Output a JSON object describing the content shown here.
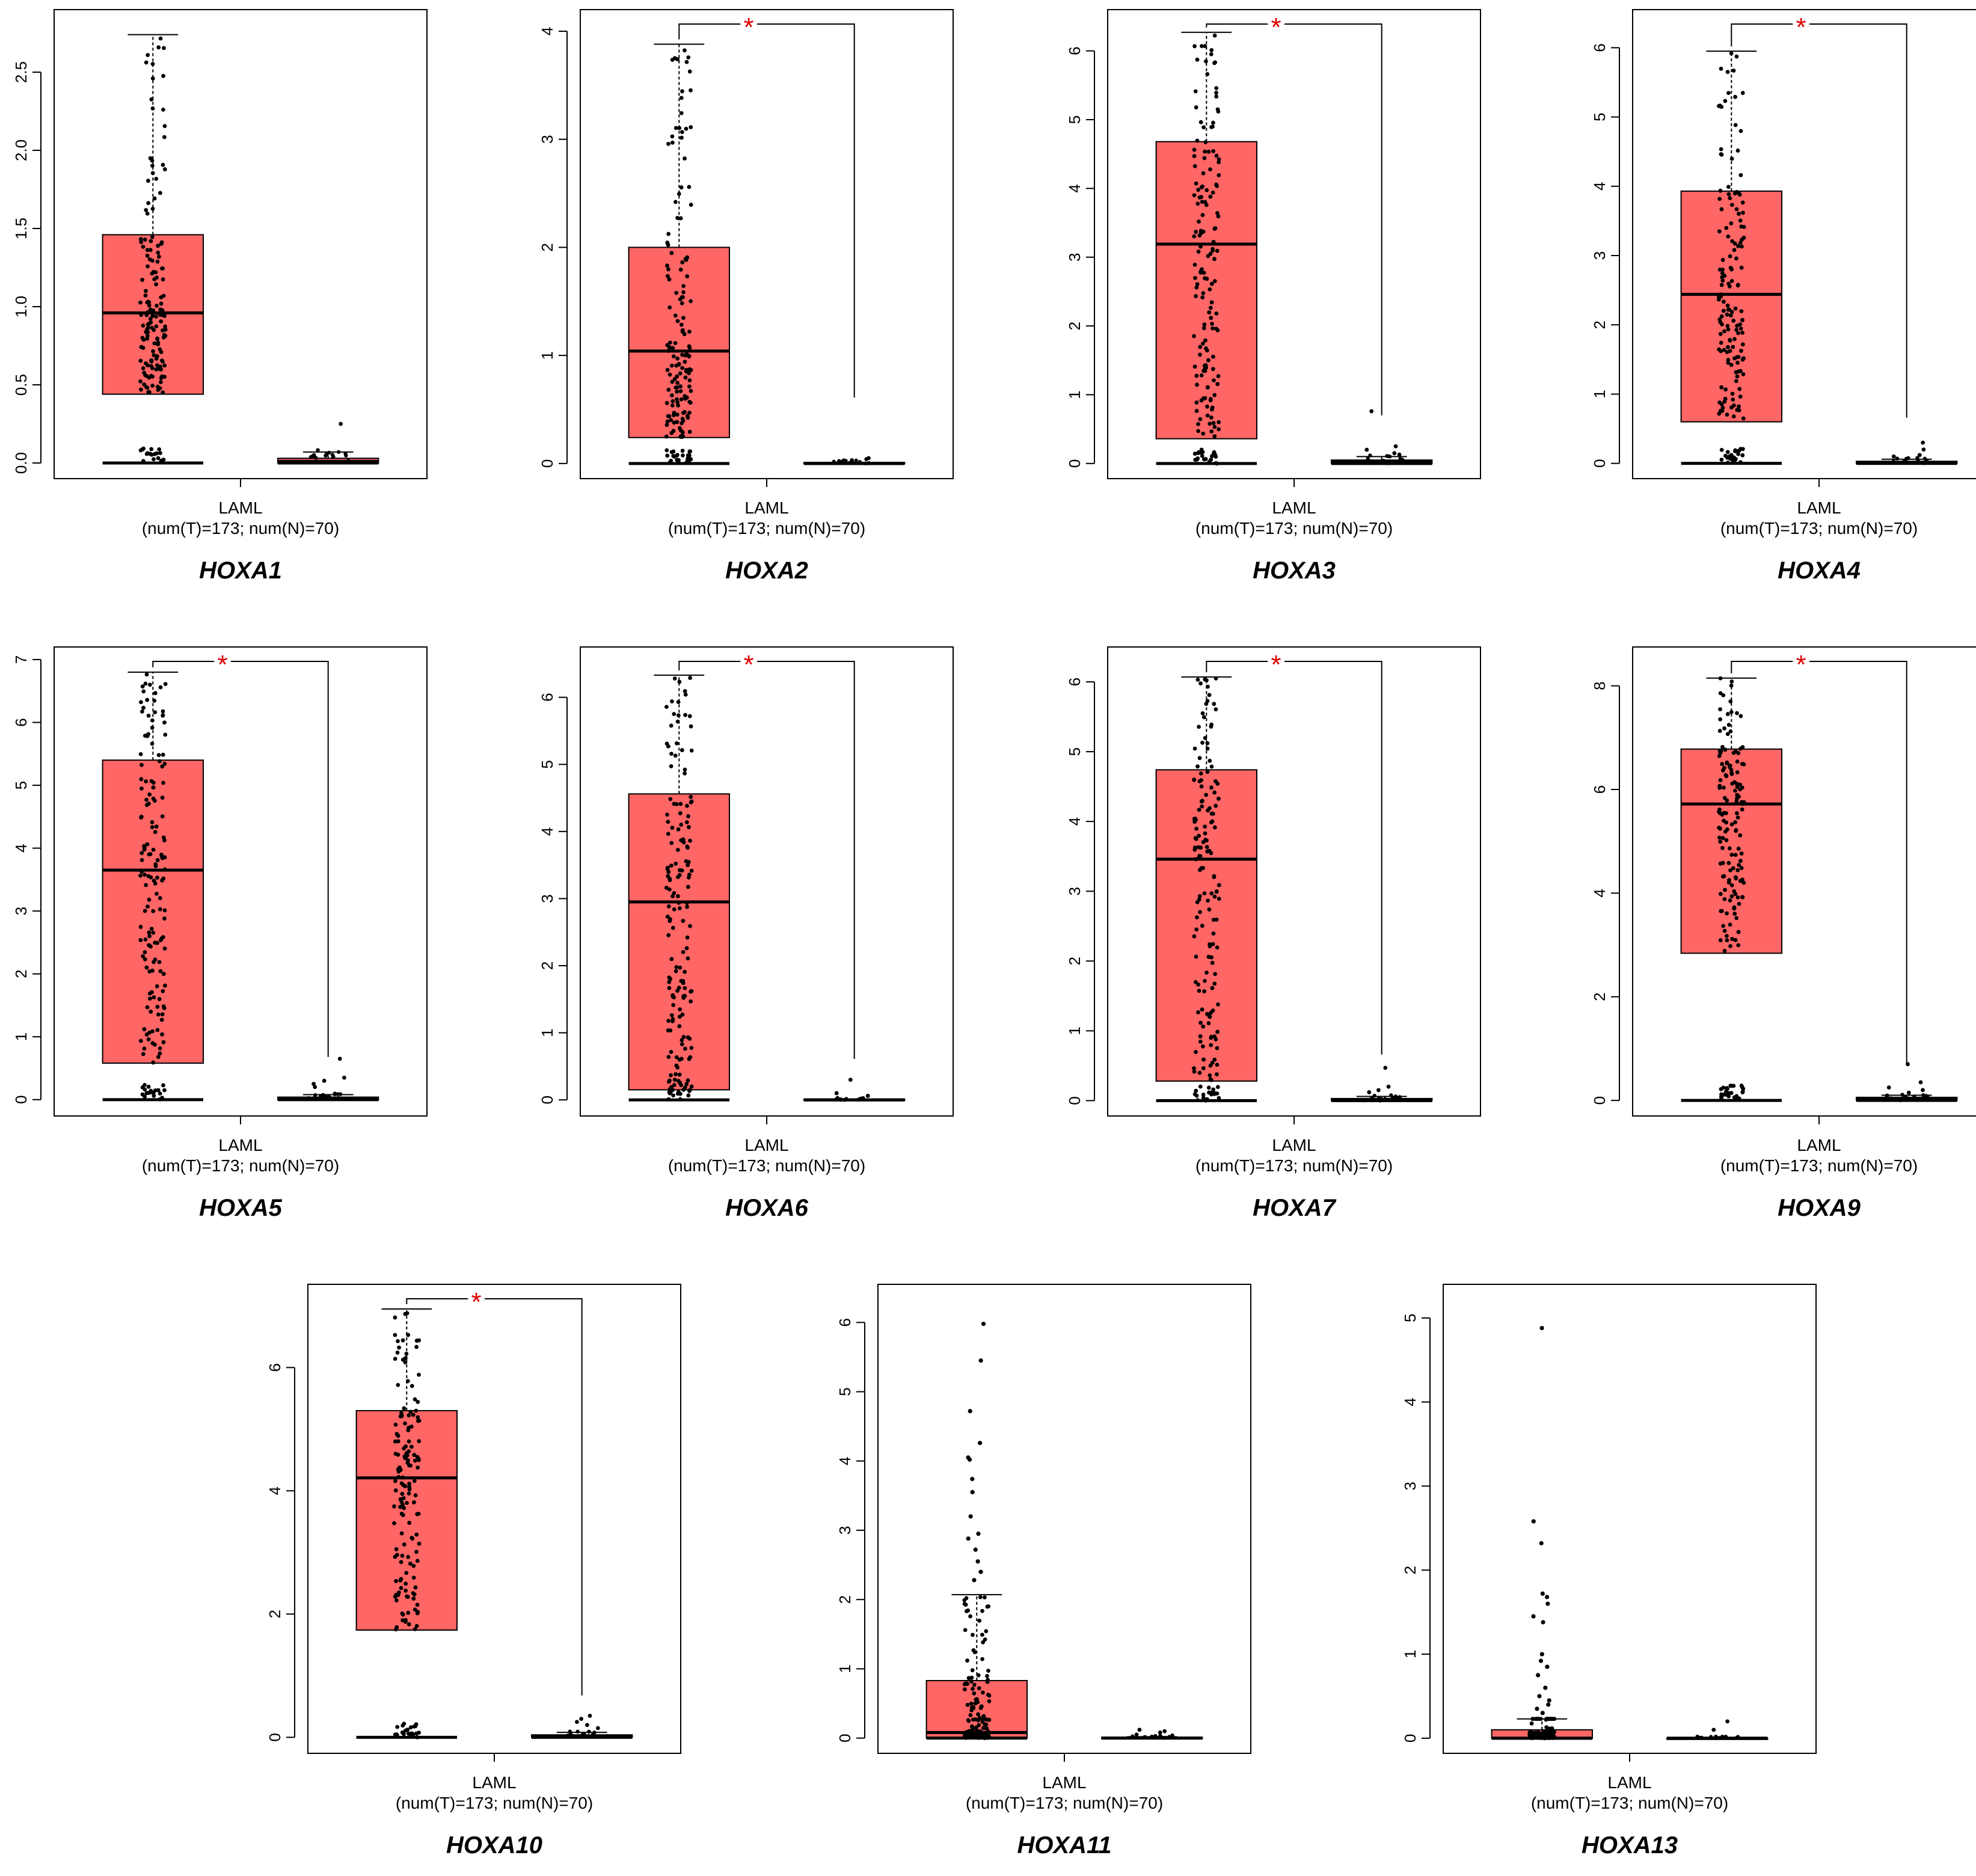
{
  "figure": {
    "tumor_color": "#ff6666",
    "normal_color": "#ff6666",
    "box_stroke": "#000000",
    "significance_color": "#e00000",
    "point_color": "#000000"
  },
  "chart_data": [
    {
      "type": "box",
      "gene": "HOXA1",
      "category": "LAML",
      "sample_label": "(num(T)=173; num(N)=70)",
      "yticks": [
        "0.0",
        "0.5",
        "1.0",
        "1.5",
        "2.0",
        "2.5"
      ],
      "ylim": [
        -0.1,
        2.9
      ],
      "significant": false,
      "significance_label": "",
      "groups": [
        {
          "name": "T",
          "q1": 0.44,
          "median": 0.96,
          "q3": 1.46,
          "whisker_low": 0.0,
          "whisker_high": 2.74
        },
        {
          "name": "N",
          "q1": 0.0,
          "median": 0.01,
          "q3": 0.03,
          "whisker_low": 0.0,
          "whisker_high": 0.07
        }
      ],
      "outliers_n": [
        0.25,
        0.05,
        0.04
      ]
    },
    {
      "type": "box",
      "gene": "HOXA2",
      "category": "LAML",
      "sample_label": "(num(T)=173; num(N)=70)",
      "yticks": [
        "0",
        "1",
        "2",
        "3",
        "4"
      ],
      "ylim": [
        -0.14,
        4.2
      ],
      "significant": true,
      "significance_label": "*",
      "groups": [
        {
          "name": "T",
          "q1": 0.24,
          "median": 1.04,
          "q3": 2.0,
          "whisker_low": 0.0,
          "whisker_high": 3.88
        },
        {
          "name": "N",
          "q1": 0.0,
          "median": 0.0,
          "q3": 0.01,
          "whisker_low": 0.0,
          "whisker_high": 0.01
        }
      ],
      "outliers_n": [
        0.05,
        0.04,
        0.03
      ]
    },
    {
      "type": "box",
      "gene": "HOXA3",
      "category": "LAML",
      "sample_label": "(num(T)=173; num(N)=70)",
      "yticks": [
        "0",
        "1",
        "2",
        "3",
        "4",
        "5",
        "6"
      ],
      "ylim": [
        -0.22,
        6.6
      ],
      "significant": true,
      "significance_label": "*",
      "groups": [
        {
          "name": "T",
          "q1": 0.36,
          "median": 3.19,
          "q3": 4.68,
          "whisker_low": 0.0,
          "whisker_high": 6.27
        },
        {
          "name": "N",
          "q1": 0.0,
          "median": 0.02,
          "q3": 0.05,
          "whisker_low": 0.0,
          "whisker_high": 0.1
        }
      ],
      "outliers_n": [
        0.76,
        0.25,
        0.2,
        0.15,
        0.13
      ]
    },
    {
      "type": "box",
      "gene": "HOXA4",
      "category": "LAML",
      "sample_label": "(num(T)=173; num(N)=70)",
      "yticks": [
        "0",
        "1",
        "2",
        "3",
        "4",
        "5",
        "6"
      ],
      "ylim": [
        -0.22,
        6.55
      ],
      "significant": true,
      "significance_label": "*",
      "groups": [
        {
          "name": "T",
          "q1": 0.6,
          "median": 2.44,
          "q3": 3.93,
          "whisker_low": 0.0,
          "whisker_high": 5.95
        },
        {
          "name": "N",
          "q1": 0.0,
          "median": 0.0,
          "q3": 0.03,
          "whisker_low": 0.0,
          "whisker_high": 0.06
        }
      ],
      "outliers_n": [
        0.3,
        0.2,
        0.12,
        0.1
      ]
    },
    {
      "type": "box",
      "gene": "HOXA5",
      "category": "LAML",
      "sample_label": "(num(T)=173; num(N)=70)",
      "yticks": [
        "0",
        "1",
        "2",
        "3",
        "4",
        "5",
        "6",
        "7"
      ],
      "ylim": [
        -0.26,
        7.2
      ],
      "significant": true,
      "significance_label": "*",
      "groups": [
        {
          "name": "T",
          "q1": 0.58,
          "median": 3.65,
          "q3": 5.4,
          "whisker_low": 0.0,
          "whisker_high": 6.8
        },
        {
          "name": "N",
          "q1": 0.0,
          "median": 0.01,
          "q3": 0.04,
          "whisker_low": 0.0,
          "whisker_high": 0.08
        }
      ],
      "outliers_n": [
        0.65,
        0.35,
        0.3,
        0.25,
        0.2
      ]
    },
    {
      "type": "box",
      "gene": "HOXA6",
      "category": "LAML",
      "sample_label": "(num(T)=173; num(N)=70)",
      "yticks": [
        "0",
        "1",
        "2",
        "3",
        "4",
        "5",
        "6"
      ],
      "ylim": [
        -0.24,
        6.75
      ],
      "significant": true,
      "significance_label": "*",
      "groups": [
        {
          "name": "T",
          "q1": 0.15,
          "median": 2.95,
          "q3": 4.56,
          "whisker_low": 0.0,
          "whisker_high": 6.33
        },
        {
          "name": "N",
          "q1": 0.0,
          "median": 0.0,
          "q3": 0.01,
          "whisker_low": 0.0,
          "whisker_high": 0.01
        }
      ],
      "outliers_n": [
        0.3,
        0.1,
        0.06
      ]
    },
    {
      "type": "box",
      "gene": "HOXA7",
      "category": "LAML",
      "sample_label": "(num(T)=173; num(N)=70)",
      "yticks": [
        "0",
        "1",
        "2",
        "3",
        "4",
        "5",
        "6"
      ],
      "ylim": [
        -0.22,
        6.5
      ],
      "significant": true,
      "significance_label": "*",
      "groups": [
        {
          "name": "T",
          "q1": 0.28,
          "median": 3.46,
          "q3": 4.74,
          "whisker_low": 0.0,
          "whisker_high": 6.07
        },
        {
          "name": "N",
          "q1": 0.0,
          "median": 0.01,
          "q3": 0.03,
          "whisker_low": 0.0,
          "whisker_high": 0.06
        }
      ],
      "outliers_n": [
        0.47,
        0.2,
        0.15,
        0.12
      ]
    },
    {
      "type": "box",
      "gene": "HOXA9",
      "category": "LAML",
      "sample_label": "(num(T)=173; num(N)=70)",
      "yticks": [
        "0",
        "2",
        "4",
        "6",
        "8"
      ],
      "ylim": [
        -0.3,
        8.75
      ],
      "significant": true,
      "significance_label": "*",
      "groups": [
        {
          "name": "T",
          "q1": 2.84,
          "median": 5.72,
          "q3": 6.78,
          "whisker_low": 0.0,
          "whisker_high": 8.15
        },
        {
          "name": "N",
          "q1": 0.0,
          "median": 0.02,
          "q3": 0.06,
          "whisker_low": 0.0,
          "whisker_high": 0.1
        }
      ],
      "outliers_n": [
        0.7,
        0.35,
        0.25,
        0.2,
        0.15
      ]
    },
    {
      "type": "box",
      "gene": "HOXA10",
      "category": "LAML",
      "sample_label": "(num(T)=173; num(N)=70)",
      "yticks": [
        "0",
        "2",
        "4",
        "6"
      ],
      "ylim": [
        -0.26,
        7.35
      ],
      "significant": true,
      "significance_label": "*",
      "groups": [
        {
          "name": "T",
          "q1": 1.74,
          "median": 4.21,
          "q3": 5.3,
          "whisker_low": 0.0,
          "whisker_high": 6.95
        },
        {
          "name": "N",
          "q1": 0.0,
          "median": 0.01,
          "q3": 0.04,
          "whisker_low": 0.0,
          "whisker_high": 0.08
        }
      ],
      "outliers_n": [
        0.35,
        0.3,
        0.25,
        0.2,
        0.15
      ]
    },
    {
      "type": "box",
      "gene": "HOXA11",
      "category": "LAML",
      "sample_label": "(num(T)=173; num(N)=70)",
      "yticks": [
        "0",
        "1",
        "2",
        "3",
        "4",
        "5",
        "6"
      ],
      "ylim": [
        -0.22,
        6.55
      ],
      "significant": false,
      "significance_label": "",
      "groups": [
        {
          "name": "T",
          "q1": 0.0,
          "median": 0.08,
          "q3": 0.83,
          "whisker_low": 0.0,
          "whisker_high": 2.07
        },
        {
          "name": "N",
          "q1": 0.0,
          "median": 0.0,
          "q3": 0.01,
          "whisker_low": 0.0,
          "whisker_high": 0.02
        }
      ],
      "outliers_t": [
        5.98,
        5.45,
        4.72,
        4.26,
        4.05,
        4.02,
        3.74,
        3.55,
        3.2,
        2.95,
        2.88,
        2.72,
        2.55,
        2.4,
        2.28
      ],
      "outliers_n": [
        0.12,
        0.1,
        0.08,
        0.05
      ]
    },
    {
      "type": "box",
      "gene": "HOXA13",
      "category": "LAML",
      "sample_label": "(num(T)=173; num(N)=70)",
      "yticks": [
        "0",
        "1",
        "2",
        "3",
        "4",
        "5"
      ],
      "ylim": [
        -0.18,
        5.4
      ],
      "significant": false,
      "significance_label": "",
      "groups": [
        {
          "name": "T",
          "q1": 0.0,
          "median": 0.0,
          "q3": 0.1,
          "whisker_low": 0.0,
          "whisker_high": 0.23
        },
        {
          "name": "N",
          "q1": 0.0,
          "median": 0.0,
          "q3": 0.0,
          "whisker_low": 0.0,
          "whisker_high": 0.0
        }
      ],
      "outliers_t": [
        4.88,
        2.58,
        2.32,
        1.72,
        1.68,
        1.6,
        1.45,
        1.38,
        1.0,
        0.92,
        0.85,
        0.75,
        0.6,
        0.5,
        0.45,
        0.4,
        0.35,
        0.3
      ],
      "outliers_n": [
        0.2,
        0.1
      ]
    }
  ]
}
